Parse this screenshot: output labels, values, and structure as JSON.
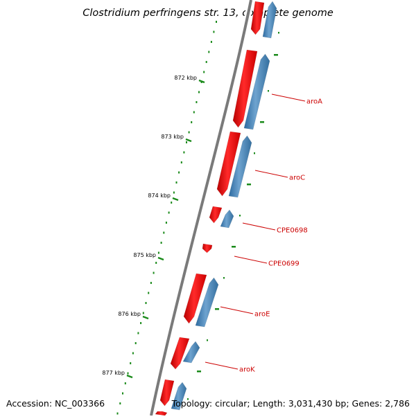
{
  "title": "Clostridium perfringens str. 13, complete genome",
  "footer": {
    "accession": "Accession: NC_003366",
    "summary": "Topology: circular; Length: 3,031,430 bp; Genes: 2,786"
  },
  "scale_labels": [
    "872 kbp",
    "873 kbp",
    "874 kbp",
    "875 kbp",
    "876 kbp",
    "877 kbp"
  ],
  "gene_labels": [
    "aroA",
    "aroC",
    "CPE0698",
    "CPE0699",
    "aroE",
    "aroK"
  ],
  "colors": {
    "forward_cds": "#ee0000",
    "reverse_cds": "#3f7fb5",
    "ruler_ticks": "#1a8a1a",
    "backbone": "#7a7a7a",
    "gene_label": "#cc0000"
  }
}
